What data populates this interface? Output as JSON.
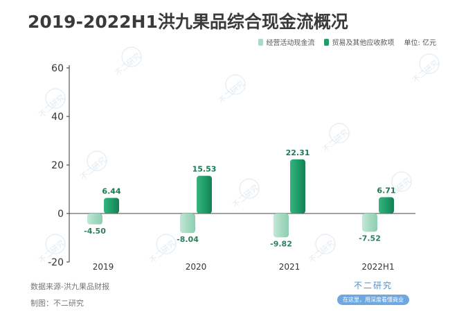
{
  "title": "2019-2022H1洪九果品综合现金流概况",
  "legend": {
    "series1": "经营活动现金流",
    "series2": "贸易及其他应收款项",
    "unit": "单位: 亿元"
  },
  "footer": {
    "source": "数据来源-洪九果品财报",
    "maker": "制图：不二研究"
  },
  "brand": {
    "name": "不二研究",
    "tagline": "在这里，用深度看懂商业"
  },
  "watermark": "不二研究",
  "colors": {
    "series1": "#a8dcc4",
    "series2": "#1f9e6a",
    "label1": "#2f7d5a",
    "label2": "#1b7a52"
  },
  "chart_data": {
    "type": "bar",
    "categories": [
      "2019",
      "2020",
      "2021",
      "2022H1"
    ],
    "series": [
      {
        "name": "经营活动现金流",
        "values": [
          -4.5,
          -8.04,
          -9.82,
          -7.52
        ],
        "labels": [
          "-4.50",
          "-8.04",
          "-9.82",
          "-7.52"
        ]
      },
      {
        "name": "贸易及其他应收款项",
        "values": [
          6.44,
          15.53,
          22.31,
          6.71
        ],
        "labels": [
          "6.44",
          "15.53",
          "22.31",
          "6.71"
        ]
      }
    ],
    "yticks": [
      60,
      40,
      20,
      0,
      -20
    ],
    "ylim": [
      -20,
      60
    ],
    "grid": false,
    "legend_position": "top-right"
  }
}
